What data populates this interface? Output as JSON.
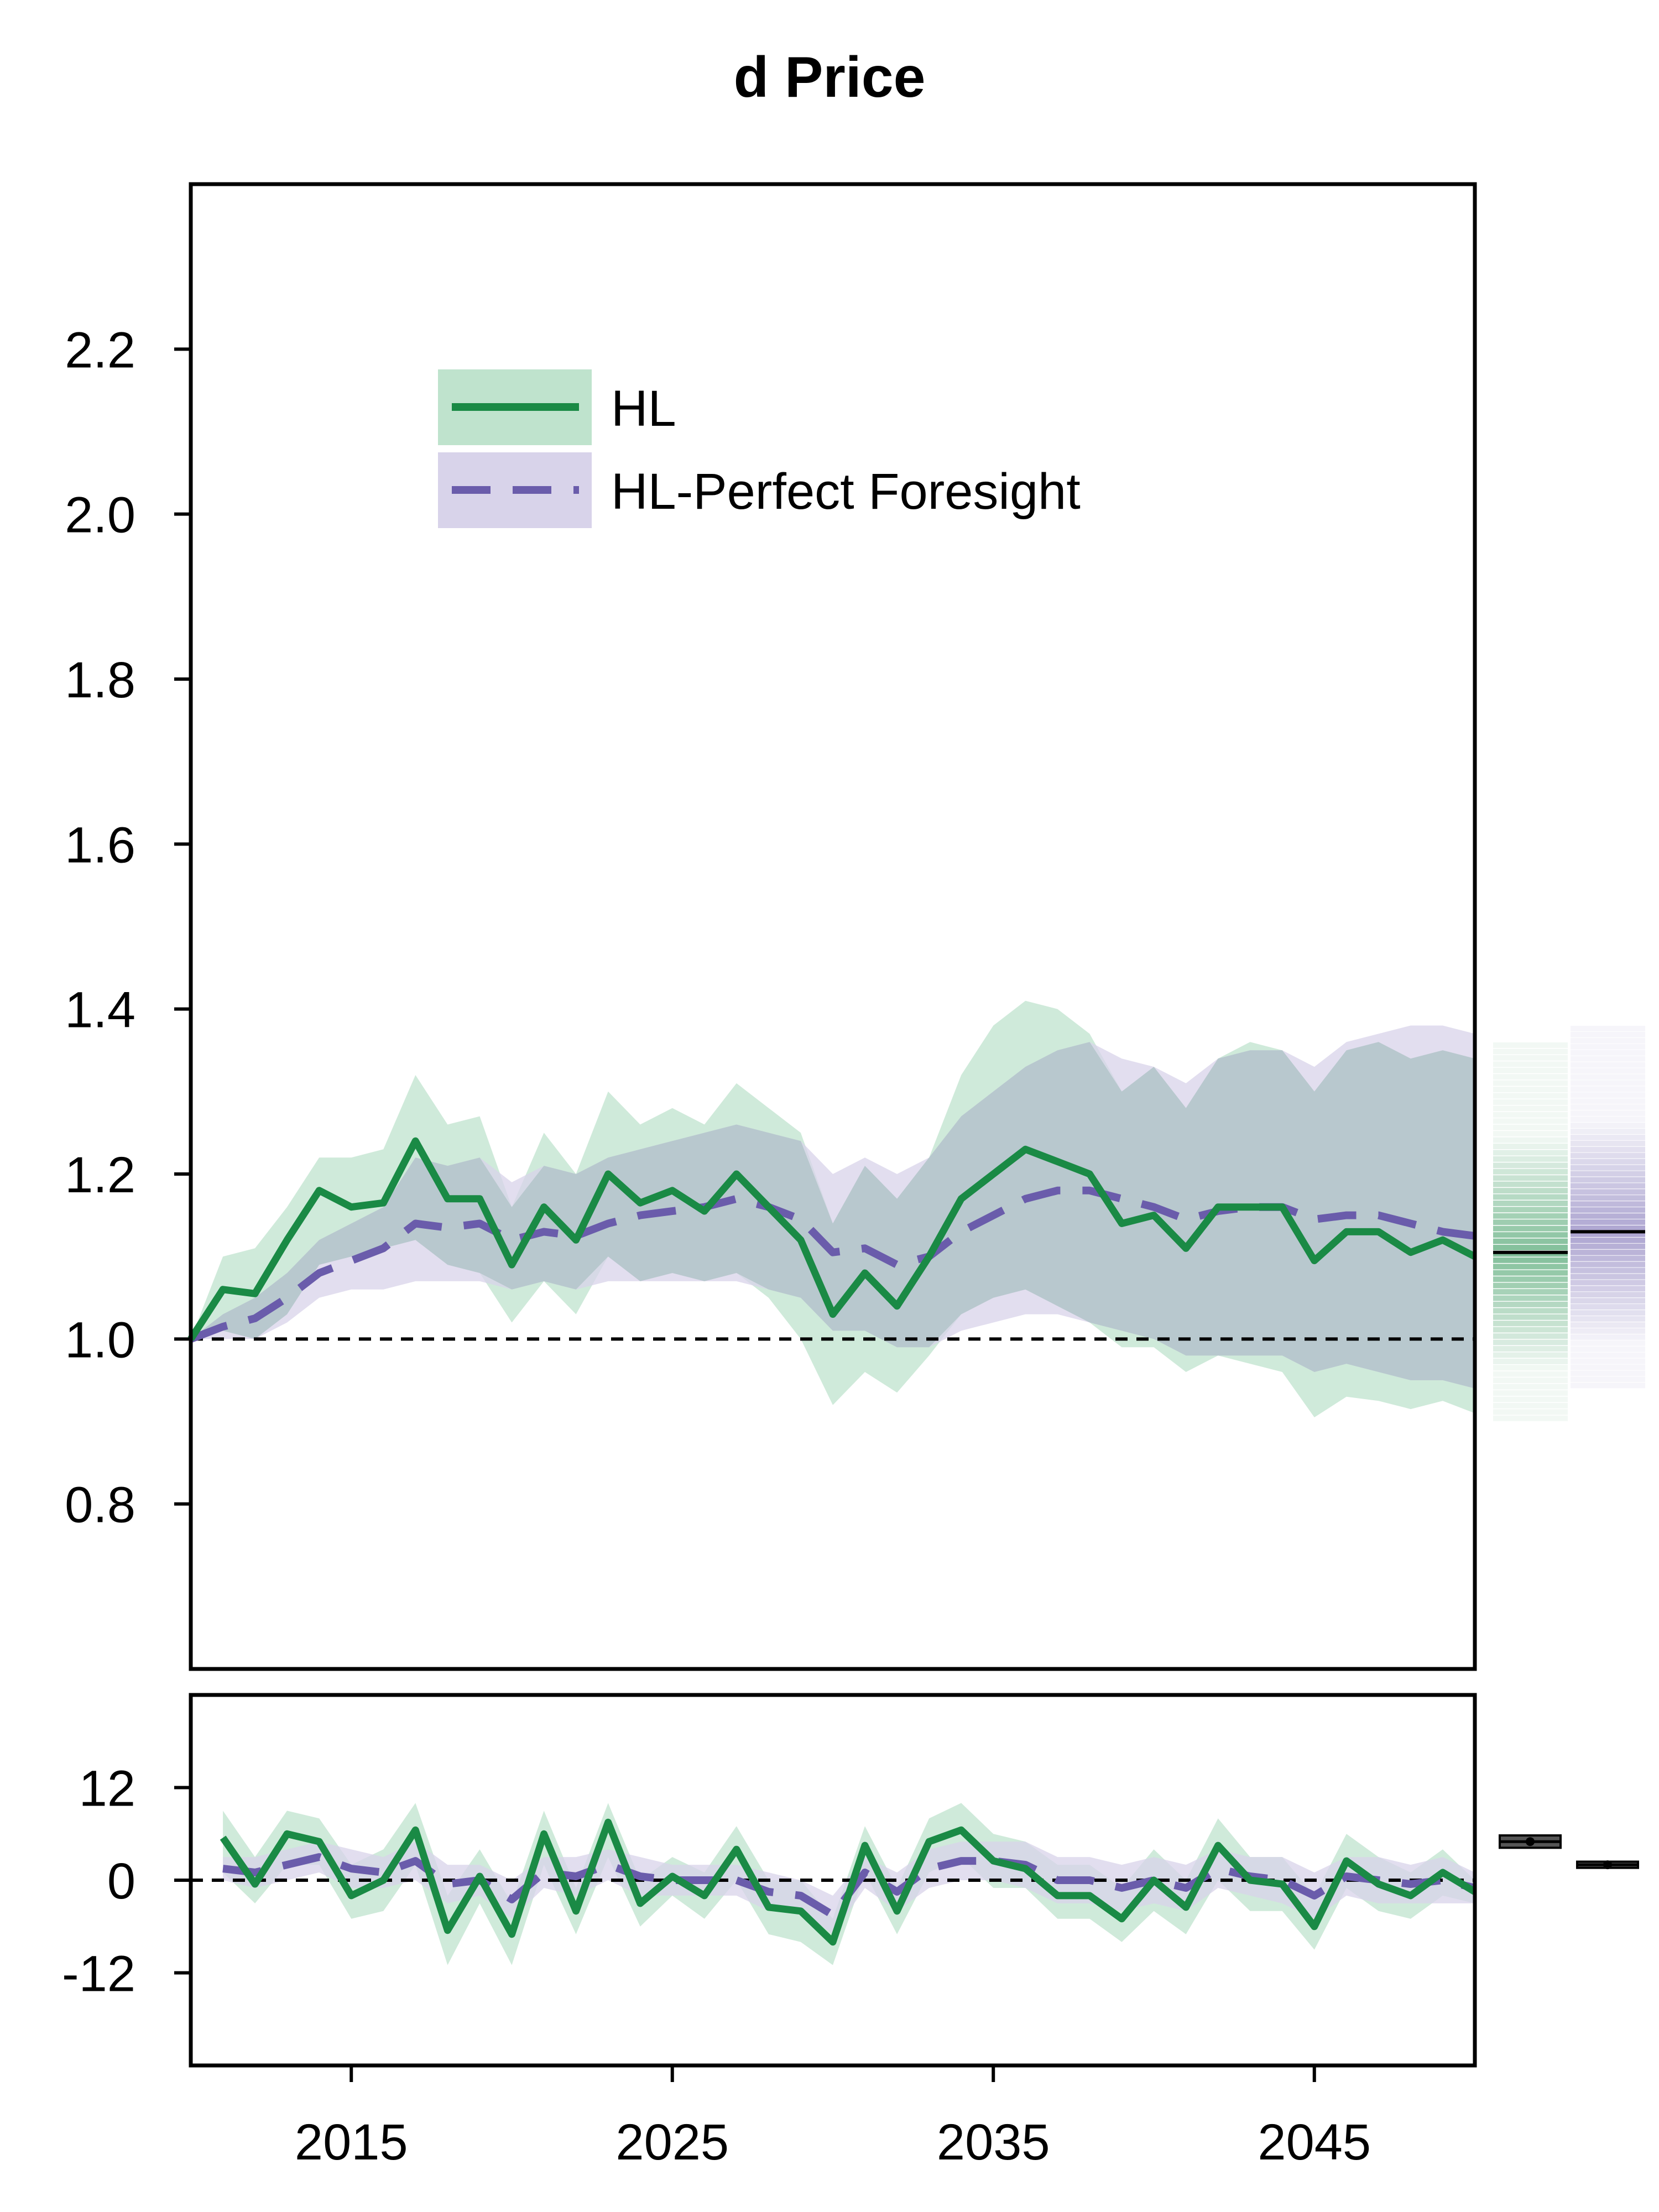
{
  "chart_data": {
    "type": "line",
    "title": "d Price",
    "colors": {
      "hl": "#1a8a45",
      "hl_band": "#bfe3cd",
      "pf": "#6a5cab",
      "pf_band": "#d8d3ea",
      "baseline": "#000000"
    },
    "legend": {
      "placement": "top-left",
      "entries": [
        "HL",
        "HL-Perfect Foresight"
      ]
    },
    "x_ticks": [
      "2015",
      "2025",
      "2035",
      "2045"
    ],
    "x_tick_values": [
      2015,
      2025,
      2035,
      2045
    ],
    "xlim": [
      2010,
      2050
    ],
    "top_panel": {
      "ylim": [
        0.6,
        2.4
      ],
      "y_ticks": [
        "0.8",
        "1.0",
        "1.2",
        "1.4",
        "1.6",
        "1.8",
        "2.0",
        "2.2"
      ],
      "y_tick_values": [
        0.8,
        1.0,
        1.2,
        1.4,
        1.6,
        1.8,
        2.0,
        2.2
      ],
      "reference_line": 1.0,
      "x": [
        2010,
        2011,
        2012,
        2013,
        2014,
        2015,
        2016,
        2017,
        2018,
        2019,
        2020,
        2021,
        2022,
        2023,
        2024,
        2025,
        2026,
        2027,
        2028,
        2029,
        2030,
        2031,
        2032,
        2033,
        2034,
        2035,
        2036,
        2037,
        2038,
        2039,
        2040,
        2041,
        2042,
        2043,
        2044,
        2045,
        2046,
        2047,
        2048,
        2049,
        2050
      ],
      "series": [
        {
          "name": "HL",
          "values": [
            1.0,
            1.06,
            1.055,
            1.12,
            1.18,
            1.16,
            1.165,
            1.24,
            1.17,
            1.17,
            1.09,
            1.16,
            1.12,
            1.2,
            1.165,
            1.18,
            1.155,
            1.2,
            1.16,
            1.12,
            1.03,
            1.08,
            1.04,
            1.1,
            1.17,
            1.2,
            1.23,
            1.215,
            1.2,
            1.14,
            1.15,
            1.11,
            1.16,
            1.16,
            1.16,
            1.095,
            1.13,
            1.13,
            1.105,
            1.12,
            1.1
          ],
          "lower": [
            1.0,
            1.01,
            1.0,
            1.03,
            1.09,
            1.1,
            1.11,
            1.12,
            1.09,
            1.08,
            1.02,
            1.07,
            1.03,
            1.1,
            1.07,
            1.08,
            1.07,
            1.08,
            1.05,
            1.0,
            0.92,
            0.96,
            0.935,
            0.98,
            1.03,
            1.05,
            1.06,
            1.04,
            1.02,
            0.99,
            0.99,
            0.96,
            0.98,
            0.97,
            0.96,
            0.905,
            0.93,
            0.925,
            0.915,
            0.925,
            0.91
          ],
          "upper": [
            1.0,
            1.1,
            1.11,
            1.16,
            1.22,
            1.22,
            1.23,
            1.32,
            1.26,
            1.27,
            1.16,
            1.25,
            1.2,
            1.3,
            1.26,
            1.28,
            1.26,
            1.31,
            1.28,
            1.25,
            1.14,
            1.21,
            1.17,
            1.22,
            1.32,
            1.38,
            1.41,
            1.4,
            1.37,
            1.3,
            1.33,
            1.28,
            1.34,
            1.36,
            1.35,
            1.3,
            1.35,
            1.36,
            1.34,
            1.35,
            1.34
          ]
        },
        {
          "name": "HL-Perfect Foresight",
          "values": [
            1.0,
            1.015,
            1.025,
            1.05,
            1.08,
            1.095,
            1.11,
            1.14,
            1.135,
            1.14,
            1.12,
            1.13,
            1.125,
            1.14,
            1.15,
            1.155,
            1.16,
            1.17,
            1.16,
            1.145,
            1.105,
            1.11,
            1.09,
            1.1,
            1.13,
            1.15,
            1.17,
            1.18,
            1.18,
            1.17,
            1.16,
            1.145,
            1.155,
            1.16,
            1.16,
            1.145,
            1.15,
            1.15,
            1.14,
            1.13,
            1.125
          ],
          "lower": [
            1.0,
            1.0,
            1.0,
            1.02,
            1.05,
            1.06,
            1.06,
            1.07,
            1.07,
            1.07,
            1.06,
            1.07,
            1.06,
            1.07,
            1.07,
            1.07,
            1.07,
            1.07,
            1.06,
            1.05,
            1.01,
            1.01,
            0.99,
            0.99,
            1.01,
            1.02,
            1.03,
            1.03,
            1.02,
            1.01,
            1.0,
            0.98,
            0.98,
            0.98,
            0.98,
            0.96,
            0.97,
            0.96,
            0.95,
            0.95,
            0.94
          ],
          "upper": [
            1.0,
            1.03,
            1.05,
            1.08,
            1.12,
            1.14,
            1.16,
            1.22,
            1.21,
            1.22,
            1.19,
            1.21,
            1.2,
            1.22,
            1.23,
            1.24,
            1.25,
            1.26,
            1.25,
            1.24,
            1.2,
            1.22,
            1.2,
            1.22,
            1.27,
            1.3,
            1.33,
            1.35,
            1.36,
            1.34,
            1.33,
            1.31,
            1.34,
            1.35,
            1.35,
            1.33,
            1.36,
            1.37,
            1.38,
            1.38,
            1.37
          ]
        }
      ],
      "side_distributions": [
        {
          "name": "HL",
          "median": 1.105,
          "lower": 0.9,
          "upper": 1.36
        },
        {
          "name": "HL-Perfect Foresight",
          "median": 1.13,
          "lower": 0.94,
          "upper": 1.38
        }
      ]
    },
    "bottom_panel": {
      "ylim": [
        -24,
        24
      ],
      "y_ticks": [
        "12",
        "0",
        "-12"
      ],
      "y_tick_values": [
        12,
        0,
        -12
      ],
      "reference_line": 0,
      "x": [
        2011,
        2012,
        2013,
        2014,
        2015,
        2016,
        2017,
        2018,
        2019,
        2020,
        2021,
        2022,
        2023,
        2024,
        2025,
        2026,
        2027,
        2028,
        2029,
        2030,
        2031,
        2032,
        2033,
        2034,
        2035,
        2036,
        2037,
        2038,
        2039,
        2040,
        2041,
        2042,
        2043,
        2044,
        2045,
        2046,
        2047,
        2048,
        2049,
        2050
      ],
      "series": [
        {
          "name": "HL",
          "values": [
            5.5,
            -0.5,
            6,
            5,
            -2,
            0,
            6.5,
            -6.5,
            0.5,
            -7,
            6,
            -4,
            7.5,
            -3,
            0.5,
            -2,
            4,
            -3.5,
            -4,
            -8,
            4.5,
            -4,
            5,
            6.5,
            2.5,
            1.5,
            -2,
            -2,
            -5,
            0,
            -3.5,
            4.5,
            0,
            -0.5,
            -6,
            2.5,
            -0.5,
            -2,
            1,
            -1.5
          ],
          "lower": [
            1,
            -3,
            2,
            2,
            -5,
            -4,
            2,
            -11,
            -3,
            -11,
            2,
            -7,
            3,
            -6,
            -2,
            -5,
            0,
            -7,
            -8,
            -11,
            1,
            -7,
            1,
            3,
            -1,
            -1,
            -5,
            -5,
            -8,
            -4,
            -7,
            0,
            -4,
            -4,
            -9,
            -1,
            -4,
            -5,
            -2,
            -3
          ],
          "upper": [
            9,
            3,
            9,
            8,
            2,
            4,
            10,
            -2,
            4,
            -3,
            9,
            -1,
            10,
            0,
            3,
            1,
            7,
            0,
            0,
            -5,
            7,
            -1,
            8,
            10,
            6,
            5,
            2,
            2,
            -1,
            4,
            0,
            8,
            3,
            3,
            -2,
            6,
            3,
            1,
            4,
            0
          ]
        },
        {
          "name": "HL-Perfect Foresight",
          "values": [
            1.5,
            1,
            2,
            3,
            1.5,
            1,
            2.5,
            -0.5,
            0,
            -2.5,
            1,
            0.5,
            2,
            0.5,
            0,
            0,
            0,
            -1.5,
            -2,
            -4.5,
            1,
            -1.5,
            1.5,
            2.5,
            2.5,
            2,
            0,
            0,
            -1,
            0,
            -1,
            1.5,
            0.5,
            0,
            -2,
            0.5,
            0,
            -0.5,
            0,
            -1
          ],
          "lower": [
            0,
            -1,
            0,
            1,
            -1,
            -1,
            0,
            -3,
            -2,
            -5,
            -1,
            -2,
            0,
            -2,
            -2,
            -2,
            -2,
            -4,
            -4,
            -7,
            -1,
            -4,
            -1,
            0,
            0,
            -1,
            -3,
            -3,
            -4,
            -3,
            -4,
            -1,
            -2,
            -3,
            -5,
            -2,
            -3,
            -3,
            -3,
            -3
          ],
          "upper": [
            3,
            3,
            4,
            5,
            4,
            3,
            5,
            2,
            2,
            0,
            3,
            3,
            4,
            3,
            2,
            2,
            2,
            1,
            0,
            -2,
            3,
            1,
            4,
            5,
            5,
            5,
            3,
            3,
            2,
            3,
            2,
            4,
            3,
            3,
            1,
            3,
            3,
            2,
            3,
            1
          ]
        }
      ],
      "side_boxes": [
        {
          "name": "HL",
          "median": 5,
          "lower": 4.2,
          "upper": 5.8
        },
        {
          "name": "HL-Perfect Foresight",
          "median": 2,
          "lower": 1.6,
          "upper": 2.4
        }
      ]
    }
  }
}
